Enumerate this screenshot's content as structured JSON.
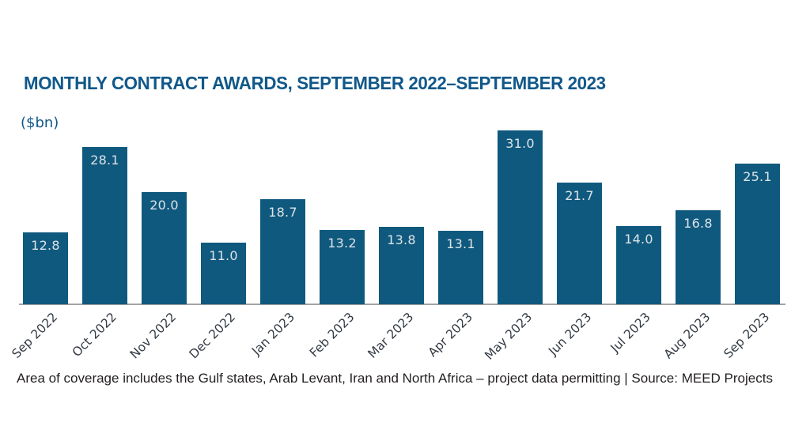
{
  "header": {
    "title": "MONTHLY CONTRACT AWARDS, SEPTEMBER 2022–SEPTEMBER 2023",
    "unit_label": "($bn)"
  },
  "footer": {
    "text": "Area of coverage includes the Gulf states, Arab Levant, Iran and North Africa – project data permitting | Source: MEED Projects"
  },
  "colors": {
    "bar_fill": "#10597e",
    "title_blue": "#10588a",
    "value_label": "#dde3e8",
    "axis_line": "#a4a4a4",
    "tick_label": "#333a44",
    "footer_text": "#231f20"
  },
  "chart_data": {
    "type": "bar",
    "title": "MONTHLY CONTRACT AWARDS, SEPTEMBER 2022–SEPTEMBER 2023",
    "ylabel": "($bn)",
    "xlabel": "",
    "categories": [
      "Sep 2022",
      "Oct 2022",
      "Nov 2022",
      "Dec 2022",
      "Jan 2023",
      "Feb 2023",
      "Mar 2023",
      "Apr 2023",
      "May 2023",
      "Jun 2023",
      "Jul 2023",
      "Aug 2023",
      "Sep 2023"
    ],
    "values": [
      12.8,
      28.1,
      20.0,
      11.0,
      18.7,
      13.2,
      13.8,
      13.1,
      31.0,
      21.7,
      14.0,
      16.8,
      25.1
    ],
    "ylim": [
      0,
      31
    ],
    "grid": false,
    "legend": false,
    "value_label_position": "inside-top",
    "value_label_format": "one-decimal",
    "x_tick_rotation_deg": 45
  }
}
